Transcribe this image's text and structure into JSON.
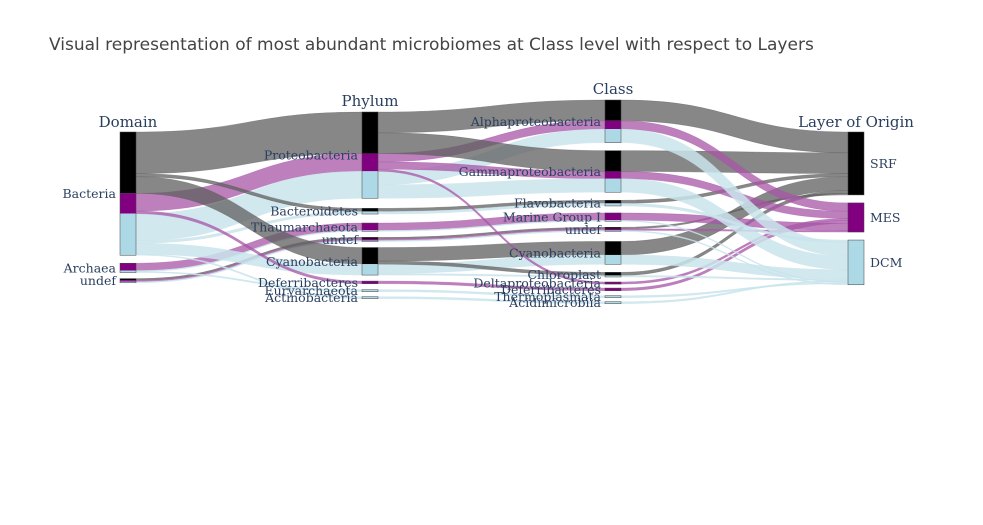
{
  "chart_data": {
    "type": "sankey",
    "title": "Visual representation of most abundant microbiomes at Class level with respect to Layers",
    "columns": [
      "Domain",
      "Phylum",
      "Class",
      "Layer of Origin"
    ],
    "colors": {
      "SRF": "#000000",
      "MES": "#800080",
      "DCM": "#add8e6",
      "link_SRF": "#5f5f5f",
      "link_MES": "#a755a7",
      "link_DCM": "#c9e4ec"
    },
    "nodes": [
      {
        "id": "d_bact",
        "column": 0,
        "label": "Bacteria"
      },
      {
        "id": "d_arch",
        "column": 0,
        "label": "Archaea"
      },
      {
        "id": "d_und",
        "column": 0,
        "label": "undef"
      },
      {
        "id": "p_prot",
        "column": 1,
        "label": "Proteobacteria"
      },
      {
        "id": "p_bact",
        "column": 1,
        "label": "Bacteroidetes"
      },
      {
        "id": "p_thau",
        "column": 1,
        "label": "Thaumarchaeota"
      },
      {
        "id": "p_und",
        "column": 1,
        "label": "undef"
      },
      {
        "id": "p_cyan",
        "column": 1,
        "label": "Cyanobacteria"
      },
      {
        "id": "p_def",
        "column": 1,
        "label": "Deferribacteres"
      },
      {
        "id": "p_eury",
        "column": 1,
        "label": "Euryarchaeota"
      },
      {
        "id": "p_actn",
        "column": 1,
        "label": "Actinobacteria"
      },
      {
        "id": "c_alph",
        "column": 2,
        "label": "Alphaproteobacteria"
      },
      {
        "id": "c_gamm",
        "column": 2,
        "label": "Gammaproteobacteria"
      },
      {
        "id": "c_flav",
        "column": 2,
        "label": "Flavobacteria"
      },
      {
        "id": "c_mg1",
        "column": 2,
        "label": "Marine Group I"
      },
      {
        "id": "c_und",
        "column": 2,
        "label": "undef"
      },
      {
        "id": "c_cyan",
        "column": 2,
        "label": "Cyanobacteria"
      },
      {
        "id": "c_chlo",
        "column": 2,
        "label": "Chloroplast"
      },
      {
        "id": "c_delt",
        "column": 2,
        "label": "Deltaproteobacteria"
      },
      {
        "id": "c_defc",
        "column": 2,
        "label": "Deferribacteres"
      },
      {
        "id": "c_ther",
        "column": 2,
        "label": "Thermoplasmata"
      },
      {
        "id": "c_acid",
        "column": 2,
        "label": "Acidimicrobiia"
      },
      {
        "id": "l_srf",
        "column": 3,
        "label": "SRF"
      },
      {
        "id": "l_mes",
        "column": 3,
        "label": "MES"
      },
      {
        "id": "l_dcm",
        "column": 3,
        "label": "DCM"
      }
    ],
    "flows": [
      {
        "domain": "d_bact",
        "phylum": "p_prot",
        "class": "c_alph",
        "layer": "SRF",
        "value": 40
      },
      {
        "domain": "d_bact",
        "phylum": "p_prot",
        "class": "c_gamm",
        "layer": "SRF",
        "value": 40
      },
      {
        "domain": "d_bact",
        "phylum": "p_bact",
        "class": "c_flav",
        "layer": "SRF",
        "value": 6
      },
      {
        "domain": "d_bact",
        "phylum": "p_cyan",
        "class": "c_cyan",
        "layer": "SRF",
        "value": 26
      },
      {
        "domain": "d_bact",
        "phylum": "p_cyan",
        "class": "c_chlo",
        "layer": "SRF",
        "value": 6
      },
      {
        "domain": "d_bact",
        "phylum": "p_prot",
        "class": "c_alph",
        "layer": "MES",
        "value": 16
      },
      {
        "domain": "d_bact",
        "phylum": "p_prot",
        "class": "c_gamm",
        "layer": "MES",
        "value": 14
      },
      {
        "domain": "d_bact",
        "phylum": "p_prot",
        "class": "c_delt",
        "layer": "MES",
        "value": 4
      },
      {
        "domain": "d_bact",
        "phylum": "p_def",
        "class": "c_defc",
        "layer": "MES",
        "value": 5
      },
      {
        "domain": "d_bact",
        "phylum": "p_bact",
        "class": "c_flav",
        "layer": "DCM",
        "value": 5
      },
      {
        "domain": "d_bact",
        "phylum": "p_prot",
        "class": "c_alph",
        "layer": "DCM",
        "value": 26
      },
      {
        "domain": "d_bact",
        "phylum": "p_prot",
        "class": "c_gamm",
        "layer": "DCM",
        "value": 26
      },
      {
        "domain": "d_bact",
        "phylum": "p_cyan",
        "class": "c_cyan",
        "layer": "DCM",
        "value": 18
      },
      {
        "domain": "d_bact",
        "phylum": "p_cyan",
        "class": "c_chlo",
        "layer": "DCM",
        "value": 3
      },
      {
        "domain": "d_bact",
        "phylum": "p_actn",
        "class": "c_acid",
        "layer": "DCM",
        "value": 2
      },
      {
        "domain": "d_arch",
        "phylum": "p_thau",
        "class": "c_mg1",
        "layer": "MES",
        "value": 14
      },
      {
        "domain": "d_arch",
        "phylum": "p_thau",
        "class": "c_mg1",
        "layer": "DCM",
        "value": 2
      },
      {
        "domain": "d_arch",
        "phylum": "p_eury",
        "class": "c_ther",
        "layer": "DCM",
        "value": 2
      },
      {
        "domain": "d_und",
        "phylum": "p_und",
        "class": "c_und",
        "layer": "SRF",
        "value": 3
      },
      {
        "domain": "d_und",
        "phylum": "p_und",
        "class": "c_und",
        "layer": "MES",
        "value": 3
      },
      {
        "domain": "d_und",
        "phylum": "p_und",
        "class": "c_und",
        "layer": "DCM",
        "value": 2
      }
    ]
  }
}
